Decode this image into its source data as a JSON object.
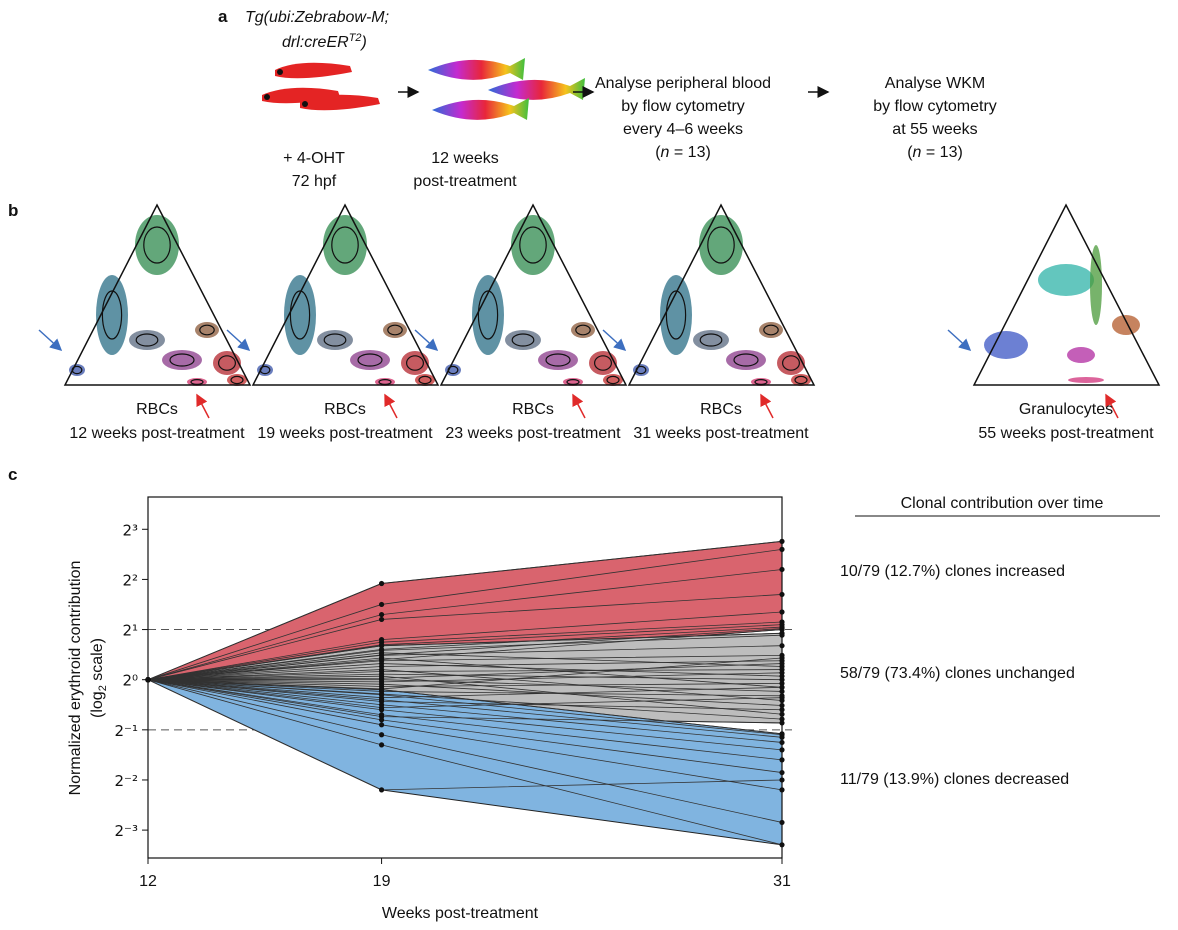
{
  "panel_a": {
    "label": "a",
    "strain": {
      "line1": "Tg(ubi:Zebrabow-M;",
      "line2": "drl:creER",
      "sup": "T2",
      "close": ")"
    },
    "treatment": [
      "+ 4-OHT",
      "72 hpf"
    ],
    "growth": [
      "12 weeks",
      "post-treatment"
    ],
    "blood": {
      "lines": [
        "Analyse peripheral blood",
        "by flow cytometry",
        "every 4–6 weeks"
      ],
      "n_open": "(",
      "n": "n",
      "n_rest": " = 13)"
    },
    "wkm": {
      "lines": [
        "Analyse WKM",
        "by flow cytometry",
        "at 55 weeks"
      ],
      "n_open": "(",
      "n": "n",
      "n_rest": " = 13)"
    }
  },
  "panel_b": {
    "label": "b",
    "plots": [
      {
        "cells": "RBCs",
        "time": "12 weeks post-treatment"
      },
      {
        "cells": "RBCs",
        "time": "19 weeks post-treatment"
      },
      {
        "cells": "RBCs",
        "time": "23 weeks post-treatment"
      },
      {
        "cells": "RBCs",
        "time": "31 weeks post-treatment"
      },
      {
        "cells": "Granulocytes",
        "time": "55 weeks post-treatment"
      }
    ]
  },
  "chart_data": {
    "type": "line",
    "label": "c",
    "ylabel": "Normalized erythroid contribution",
    "ylabel2": {
      "open": "(log",
      "sub": "2",
      "close": " scale)"
    },
    "xlabel": "Weeks post-treatment",
    "x": [
      12,
      19,
      31
    ],
    "xlim": [
      12,
      31
    ],
    "xticks": [
      12,
      19,
      31
    ],
    "log_scale": true,
    "ylim": [
      0.085,
      12.5
    ],
    "yticks": [
      {
        "value": 8,
        "label": "2³"
      },
      {
        "value": 4,
        "label": "2²"
      },
      {
        "value": 2,
        "label": "2¹"
      },
      {
        "value": 1,
        "label": "2⁰"
      },
      {
        "value": 0.5,
        "label": "2⁻¹"
      },
      {
        "value": 0.25,
        "label": "2⁻²"
      },
      {
        "value": 0.125,
        "label": "2⁻³"
      }
    ],
    "thresholds": [
      2,
      0.5
    ],
    "legend_title": "Clonal contribution over time",
    "groups": [
      {
        "label": "10/79 (12.7%) clones increased",
        "color": "#d9646e",
        "clones": [
          [
            1,
            3.78,
            6.77
          ],
          [
            1,
            2.83,
            6.06
          ],
          [
            1,
            2.46,
            4.59
          ],
          [
            1,
            2.3,
            3.25
          ],
          [
            1,
            1.74,
            2.55
          ],
          [
            1,
            1.68,
            2.22
          ],
          [
            1,
            1.62,
            2.14
          ],
          [
            1,
            1.52,
            2.07
          ],
          [
            1,
            1.41,
            2.03
          ],
          [
            1,
            1.32,
            2.0
          ]
        ]
      },
      {
        "label": "58/79 (73.4%) clones unchanged",
        "color": "#bdbdbd",
        "clones": [
          [
            1,
            1.6,
            1.9
          ],
          [
            1,
            1.5,
            1.85
          ],
          [
            1,
            1.45,
            1.2
          ],
          [
            1,
            1.4,
            1.6
          ],
          [
            1,
            1.35,
            0.9
          ],
          [
            1,
            1.3,
            1.4
          ],
          [
            1,
            1.25,
            1.05
          ],
          [
            1,
            1.2,
            1.3
          ],
          [
            1,
            1.15,
            0.75
          ],
          [
            1,
            1.12,
            1.15
          ],
          [
            1,
            1.08,
            1.0
          ],
          [
            1,
            1.05,
            0.62
          ],
          [
            1,
            1.02,
            1.25
          ],
          [
            1,
            1.0,
            0.85
          ],
          [
            1,
            0.97,
            1.1
          ],
          [
            1,
            0.94,
            0.7
          ],
          [
            1,
            0.91,
            0.95
          ],
          [
            1,
            0.88,
            1.35
          ],
          [
            1,
            0.85,
            0.8
          ],
          [
            1,
            0.82,
            0.58
          ],
          [
            1,
            0.78,
            0.9
          ],
          [
            1,
            0.74,
            0.66
          ],
          [
            1,
            0.68,
            0.78
          ],
          [
            1,
            0.6,
            0.55
          ]
        ]
      },
      {
        "label": "11/79 (13.9%) clones decreased",
        "color": "#80b4e0",
        "clones": [
          [
            1,
            0.218,
            0.25
          ],
          [
            1,
            0.406,
            0.102
          ],
          [
            1,
            0.467,
            0.139
          ],
          [
            1,
            0.536,
            0.218
          ],
          [
            1,
            0.574,
            0.277
          ],
          [
            1,
            0.616,
            0.33
          ],
          [
            1,
            0.66,
            0.379
          ],
          [
            1,
            0.707,
            0.42
          ],
          [
            1,
            0.758,
            0.451
          ],
          [
            1,
            0.812,
            0.467
          ],
          [
            1,
            0.871,
            0.473
          ]
        ]
      }
    ]
  }
}
